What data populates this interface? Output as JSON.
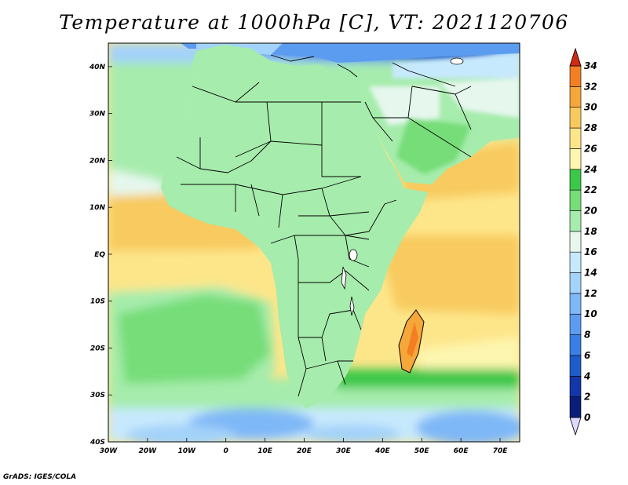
{
  "title": "Temperature at 1000hPa [C], VT: 2021120706",
  "credit": "GrADS: IGES/COLA",
  "map": {
    "lon_labels": [
      "30W",
      "20W",
      "10W",
      "0",
      "10E",
      "20E",
      "30E",
      "40E",
      "50E",
      "60E",
      "70E"
    ],
    "lat_labels": [
      "40N",
      "30N",
      "20N",
      "10N",
      "EQ",
      "10S",
      "20S",
      "30S",
      "40S"
    ],
    "lon_range": [
      -30,
      75
    ],
    "lat_range": [
      -40,
      45
    ]
  },
  "colorbar": {
    "labels": [
      "0",
      "2",
      "4",
      "6",
      "8",
      "10",
      "12",
      "14",
      "16",
      "18",
      "20",
      "22",
      "24",
      "26",
      "28",
      "30",
      "32",
      "34"
    ],
    "colors": [
      "#0a1d78",
      "#1337a8",
      "#1e5ccc",
      "#3a7fe6",
      "#5c9cf0",
      "#7fb8f7",
      "#a3d2fa",
      "#c7e9fd",
      "#e6f7ee",
      "#a6ecac",
      "#76dd78",
      "#3cc849",
      "#fdf6b0",
      "#fde68a",
      "#f8ca5e",
      "#f6a73a",
      "#f47f23",
      "#eb541d",
      "#d22a12"
    ],
    "colors_note": "first=below-0 triangle, last=above-34 triangle"
  },
  "palette": {
    "frame": "#000000",
    "border": "#000000"
  }
}
